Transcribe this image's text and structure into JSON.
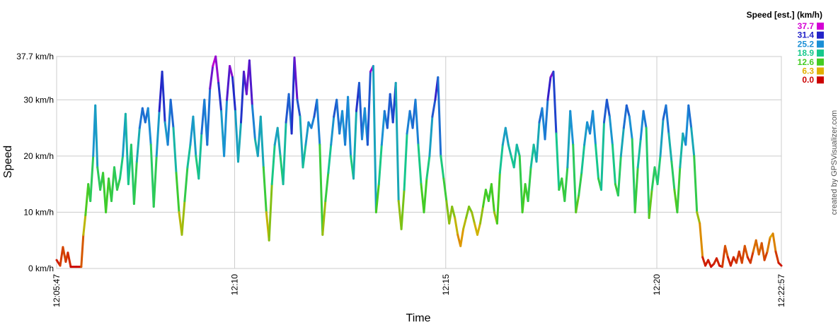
{
  "chart_data": {
    "type": "line",
    "xlabel": "Time",
    "ylabel": "Speed",
    "y_ticks": [
      "37.7 km/h",
      "30 km/h",
      "20 km/h",
      "10 km/h",
      "0 km/h"
    ],
    "y_tick_values": [
      37.7,
      30,
      20,
      10,
      0
    ],
    "x_ticks": [
      "12:05:47",
      "12:10",
      "12:15",
      "12:20",
      "12:22:57"
    ],
    "x_tick_times": [
      "12:05:47",
      "12:10:00",
      "12:15:00",
      "12:20:00",
      "12:22:57"
    ],
    "xlim": [
      "12:05:47",
      "12:22:57"
    ],
    "ylim": [
      0,
      37.7
    ],
    "grid": true,
    "legend": {
      "title": "Speed [est.] (km/h)",
      "placement": "top-right",
      "entries": [
        {
          "label": "37.7",
          "color": "#d400d4"
        },
        {
          "label": "31.4",
          "color": "#2323c8"
        },
        {
          "label": "25.2",
          "color": "#1a8fd6"
        },
        {
          "label": "18.9",
          "color": "#16c88c"
        },
        {
          "label": "12.6",
          "color": "#44cc22"
        },
        {
          "label": "6.3",
          "color": "#e0b000"
        },
        {
          "label": "0.0",
          "color": "#cc0000"
        }
      ]
    },
    "credit": "created by GPSVisualizer.com",
    "series": [
      {
        "points": [
          [
            "12:05:47",
            1.5
          ],
          [
            "12:05:52",
            0.5
          ],
          [
            "12:05:56",
            3.8
          ],
          [
            "12:06:00",
            1.2
          ],
          [
            "12:06:03",
            2.8
          ],
          [
            "12:06:07",
            0.3
          ],
          [
            "12:06:15",
            0.3
          ],
          [
            "12:06:22",
            0.3
          ],
          [
            "12:06:25",
            6.0
          ],
          [
            "12:06:28",
            9.5
          ],
          [
            "12:06:32",
            15.0
          ],
          [
            "12:06:35",
            12.0
          ],
          [
            "12:06:39",
            20.0
          ],
          [
            "12:06:42",
            29.0
          ],
          [
            "12:06:45",
            18.0
          ],
          [
            "12:06:49",
            14.0
          ],
          [
            "12:06:53",
            17.0
          ],
          [
            "12:06:57",
            10.0
          ],
          [
            "12:07:01",
            16.0
          ],
          [
            "12:07:05",
            12.0
          ],
          [
            "12:07:09",
            18.0
          ],
          [
            "12:07:13",
            14.0
          ],
          [
            "12:07:17",
            16.0
          ],
          [
            "12:07:21",
            20.0
          ],
          [
            "12:07:25",
            27.5
          ],
          [
            "12:07:29",
            15.0
          ],
          [
            "12:07:33",
            22.0
          ],
          [
            "12:07:37",
            11.5
          ],
          [
            "12:07:41",
            19.0
          ],
          [
            "12:07:45",
            25.0
          ],
          [
            "12:07:49",
            28.5
          ],
          [
            "12:07:53",
            26.0
          ],
          [
            "12:07:57",
            28.5
          ],
          [
            "12:08:01",
            22.0
          ],
          [
            "12:08:05",
            11.0
          ],
          [
            "12:08:09",
            20.0
          ],
          [
            "12:08:13",
            28.0
          ],
          [
            "12:08:17",
            35.0
          ],
          [
            "12:08:21",
            26.0
          ],
          [
            "12:08:25",
            22.0
          ],
          [
            "12:08:29",
            30.0
          ],
          [
            "12:08:33",
            25.0
          ],
          [
            "12:08:37",
            17.0
          ],
          [
            "12:08:41",
            10.0
          ],
          [
            "12:08:45",
            6.0
          ],
          [
            "12:08:49",
            12.0
          ],
          [
            "12:08:53",
            18.0
          ],
          [
            "12:08:57",
            22.0
          ],
          [
            "12:09:01",
            27.0
          ],
          [
            "12:09:05",
            20.0
          ],
          [
            "12:09:09",
            16.0
          ],
          [
            "12:09:13",
            24.0
          ],
          [
            "12:09:17",
            30.0
          ],
          [
            "12:09:21",
            22.0
          ],
          [
            "12:09:25",
            32.0
          ],
          [
            "12:09:29",
            36.0
          ],
          [
            "12:09:33",
            37.7
          ],
          [
            "12:09:37",
            33.0
          ],
          [
            "12:09:41",
            28.0
          ],
          [
            "12:09:45",
            20.0
          ],
          [
            "12:09:49",
            30.0
          ],
          [
            "12:09:53",
            36.0
          ],
          [
            "12:09:57",
            34.0
          ],
          [
            "12:10:01",
            28.0
          ],
          [
            "12:10:05",
            19.0
          ],
          [
            "12:10:09",
            26.0
          ],
          [
            "12:10:13",
            35.0
          ],
          [
            "12:10:17",
            31.0
          ],
          [
            "12:10:21",
            37.0
          ],
          [
            "12:10:25",
            29.0
          ],
          [
            "12:10:29",
            23.0
          ],
          [
            "12:10:33",
            20.0
          ],
          [
            "12:10:37",
            27.0
          ],
          [
            "12:10:41",
            18.0
          ],
          [
            "12:10:45",
            10.0
          ],
          [
            "12:10:49",
            5.0
          ],
          [
            "12:10:53",
            15.0
          ],
          [
            "12:10:57",
            22.0
          ],
          [
            "12:11:01",
            25.0
          ],
          [
            "12:11:05",
            20.0
          ],
          [
            "12:11:09",
            15.0
          ],
          [
            "12:11:13",
            26.0
          ],
          [
            "12:11:17",
            31.0
          ],
          [
            "12:11:21",
            24.0
          ],
          [
            "12:11:25",
            37.5
          ],
          [
            "12:11:29",
            30.0
          ],
          [
            "12:11:33",
            27.0
          ],
          [
            "12:11:37",
            18.0
          ],
          [
            "12:11:41",
            22.0
          ],
          [
            "12:11:45",
            26.0
          ],
          [
            "12:11:49",
            25.0
          ],
          [
            "12:11:53",
            27.0
          ],
          [
            "12:11:57",
            30.0
          ],
          [
            "12:12:01",
            22.0
          ],
          [
            "12:12:05",
            6.0
          ],
          [
            "12:12:09",
            12.0
          ],
          [
            "12:12:13",
            17.0
          ],
          [
            "12:12:17",
            22.0
          ],
          [
            "12:12:21",
            27.0
          ],
          [
            "12:12:25",
            30.0
          ],
          [
            "12:12:29",
            24.0
          ],
          [
            "12:12:33",
            28.0
          ],
          [
            "12:12:37",
            22.0
          ],
          [
            "12:12:41",
            30.5
          ],
          [
            "12:12:45",
            20.0
          ],
          [
            "12:12:49",
            16.0
          ],
          [
            "12:12:53",
            28.0
          ],
          [
            "12:12:57",
            33.0
          ],
          [
            "12:13:01",
            23.0
          ],
          [
            "12:13:05",
            28.5
          ],
          [
            "12:13:09",
            22.0
          ],
          [
            "12:13:13",
            35.0
          ],
          [
            "12:13:17",
            36.0
          ],
          [
            "12:13:21",
            10.0
          ],
          [
            "12:13:25",
            15.0
          ],
          [
            "12:13:29",
            22.0
          ],
          [
            "12:13:33",
            28.0
          ],
          [
            "12:13:37",
            25.0
          ],
          [
            "12:13:41",
            31.0
          ],
          [
            "12:13:45",
            26.0
          ],
          [
            "12:13:49",
            33.0
          ],
          [
            "12:13:53",
            12.0
          ],
          [
            "12:13:57",
            7.0
          ],
          [
            "12:14:01",
            14.0
          ],
          [
            "12:14:05",
            24.0
          ],
          [
            "12:14:09",
            28.0
          ],
          [
            "12:14:13",
            25.0
          ],
          [
            "12:14:17",
            30.0
          ],
          [
            "12:14:21",
            22.0
          ],
          [
            "12:14:25",
            15.0
          ],
          [
            "12:14:29",
            10.0
          ],
          [
            "12:14:33",
            16.0
          ],
          [
            "12:14:37",
            20.0
          ],
          [
            "12:14:41",
            27.0
          ],
          [
            "12:14:45",
            30.0
          ],
          [
            "12:14:49",
            34.0
          ],
          [
            "12:14:53",
            20.0
          ],
          [
            "12:14:57",
            16.0
          ],
          [
            "12:15:01",
            12.0
          ],
          [
            "12:15:05",
            8.0
          ],
          [
            "12:15:09",
            11.0
          ],
          [
            "12:15:13",
            9.0
          ],
          [
            "12:15:17",
            6.0
          ],
          [
            "12:15:21",
            4.0
          ],
          [
            "12:15:25",
            7.0
          ],
          [
            "12:15:29",
            9.0
          ],
          [
            "12:15:33",
            11.0
          ],
          [
            "12:15:37",
            10.0
          ],
          [
            "12:15:41",
            8.0
          ],
          [
            "12:15:45",
            6.0
          ],
          [
            "12:15:49",
            8.0
          ],
          [
            "12:15:53",
            11.0
          ],
          [
            "12:15:57",
            14.0
          ],
          [
            "12:16:01",
            12.0
          ],
          [
            "12:16:05",
            15.0
          ],
          [
            "12:16:09",
            10.0
          ],
          [
            "12:16:13",
            8.0
          ],
          [
            "12:16:17",
            17.0
          ],
          [
            "12:16:21",
            22.0
          ],
          [
            "12:16:25",
            25.0
          ],
          [
            "12:16:29",
            22.0
          ],
          [
            "12:16:33",
            20.0
          ],
          [
            "12:16:37",
            18.0
          ],
          [
            "12:16:41",
            22.0
          ],
          [
            "12:16:45",
            20.0
          ],
          [
            "12:16:49",
            10.0
          ],
          [
            "12:16:53",
            15.0
          ],
          [
            "12:16:57",
            12.0
          ],
          [
            "12:17:01",
            18.0
          ],
          [
            "12:17:05",
            22.0
          ],
          [
            "12:17:09",
            19.0
          ],
          [
            "12:17:13",
            26.0
          ],
          [
            "12:17:17",
            28.5
          ],
          [
            "12:17:21",
            23.0
          ],
          [
            "12:17:25",
            30.0
          ],
          [
            "12:17:29",
            34.0
          ],
          [
            "12:17:33",
            35.0
          ],
          [
            "12:17:37",
            24.0
          ],
          [
            "12:17:41",
            14.0
          ],
          [
            "12:17:45",
            16.0
          ],
          [
            "12:17:49",
            12.0
          ],
          [
            "12:17:53",
            18.0
          ],
          [
            "12:17:57",
            28.0
          ],
          [
            "12:18:01",
            22.0
          ],
          [
            "12:18:05",
            10.0
          ],
          [
            "12:18:09",
            13.0
          ],
          [
            "12:18:13",
            17.0
          ],
          [
            "12:18:17",
            22.0
          ],
          [
            "12:18:21",
            26.0
          ],
          [
            "12:18:25",
            24.0
          ],
          [
            "12:18:29",
            28.0
          ],
          [
            "12:18:33",
            22.0
          ],
          [
            "12:18:37",
            16.0
          ],
          [
            "12:18:41",
            14.0
          ],
          [
            "12:18:45",
            26.0
          ],
          [
            "12:18:49",
            30.0
          ],
          [
            "12:18:53",
            27.0
          ],
          [
            "12:18:57",
            22.0
          ],
          [
            "12:19:01",
            15.0
          ],
          [
            "12:19:05",
            13.0
          ],
          [
            "12:19:09",
            20.0
          ],
          [
            "12:19:13",
            25.0
          ],
          [
            "12:19:17",
            29.0
          ],
          [
            "12:19:21",
            27.0
          ],
          [
            "12:19:25",
            23.0
          ],
          [
            "12:19:29",
            10.0
          ],
          [
            "12:19:33",
            18.0
          ],
          [
            "12:19:37",
            23.0
          ],
          [
            "12:19:41",
            28.0
          ],
          [
            "12:19:45",
            25.0
          ],
          [
            "12:19:49",
            9.0
          ],
          [
            "12:19:53",
            14.0
          ],
          [
            "12:19:57",
            18.0
          ],
          [
            "12:20:01",
            15.0
          ],
          [
            "12:20:05",
            20.0
          ],
          [
            "12:20:09",
            26.5
          ],
          [
            "12:20:13",
            29.0
          ],
          [
            "12:20:17",
            24.0
          ],
          [
            "12:20:21",
            19.0
          ],
          [
            "12:20:25",
            14.0
          ],
          [
            "12:20:29",
            10.0
          ],
          [
            "12:20:33",
            18.0
          ],
          [
            "12:20:37",
            24.0
          ],
          [
            "12:20:41",
            22.0
          ],
          [
            "12:20:45",
            29.0
          ],
          [
            "12:20:49",
            25.0
          ],
          [
            "12:20:53",
            20.0
          ],
          [
            "12:20:57",
            10.0
          ],
          [
            "12:21:01",
            8.0
          ],
          [
            "12:21:05",
            2.0
          ],
          [
            "12:21:09",
            0.5
          ],
          [
            "12:21:13",
            1.5
          ],
          [
            "12:21:17",
            0.3
          ],
          [
            "12:21:21",
            0.8
          ],
          [
            "12:21:25",
            1.8
          ],
          [
            "12:21:29",
            0.5
          ],
          [
            "12:21:33",
            0.3
          ],
          [
            "12:21:37",
            4.0
          ],
          [
            "12:21:41",
            2.0
          ],
          [
            "12:21:45",
            0.5
          ],
          [
            "12:21:49",
            2.0
          ],
          [
            "12:21:53",
            1.0
          ],
          [
            "12:21:57",
            3.0
          ],
          [
            "12:22:01",
            1.0
          ],
          [
            "12:22:05",
            4.0
          ],
          [
            "12:22:09",
            2.0
          ],
          [
            "12:22:13",
            1.0
          ],
          [
            "12:22:17",
            3.0
          ],
          [
            "12:22:21",
            5.0
          ],
          [
            "12:22:25",
            2.5
          ],
          [
            "12:22:29",
            4.5
          ],
          [
            "12:22:33",
            1.5
          ],
          [
            "12:22:37",
            3.0
          ],
          [
            "12:22:41",
            5.5
          ],
          [
            "12:22:45",
            6.2
          ],
          [
            "12:22:49",
            3.0
          ],
          [
            "12:22:53",
            1.0
          ],
          [
            "12:22:57",
            0.5
          ]
        ]
      }
    ]
  }
}
